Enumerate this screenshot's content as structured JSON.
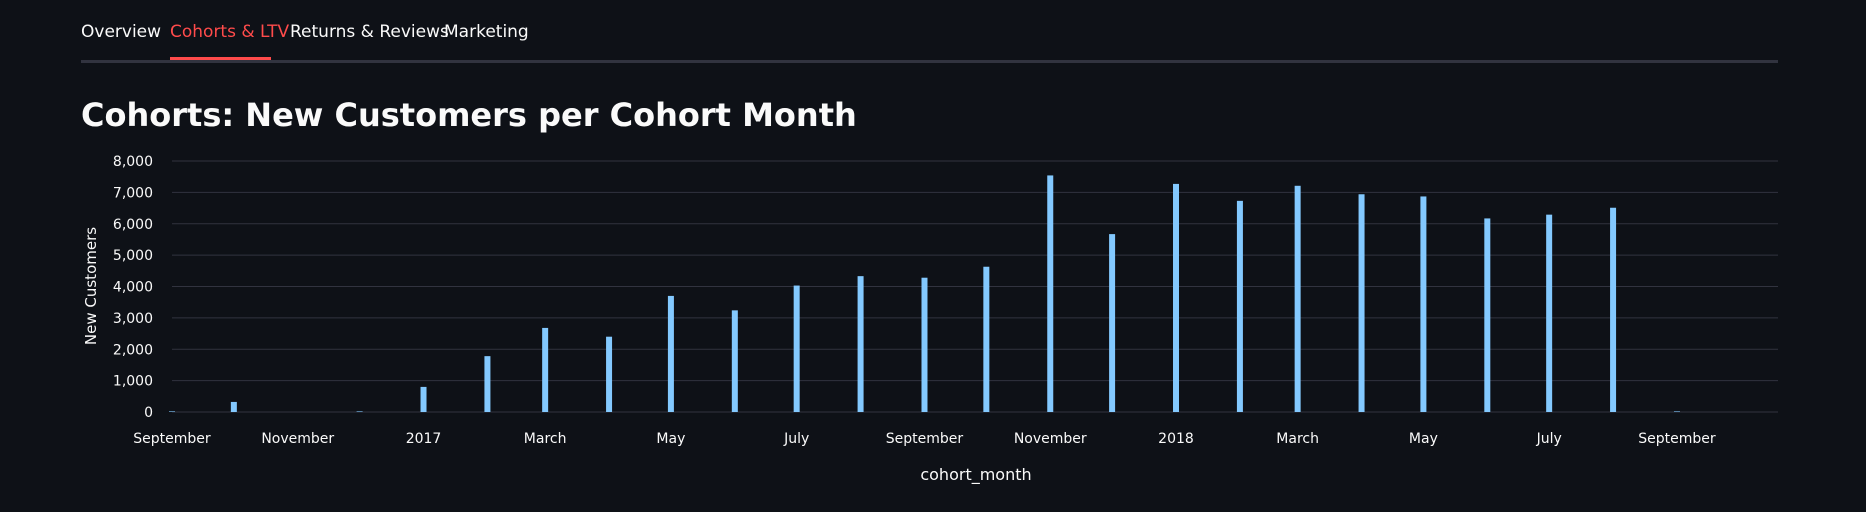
{
  "tabs": [
    {
      "label": "Overview",
      "active": false
    },
    {
      "label": "Cohorts & LTV",
      "active": true
    },
    {
      "label": "Returns & Reviews",
      "active": false
    },
    {
      "label": "Marketing",
      "active": false
    }
  ],
  "section": {
    "title": "Cohorts: New Customers per Cohort Month"
  },
  "colors": {
    "background": "#0e1117",
    "bar": "#83c9ff",
    "active_tab": "#ff4b4b",
    "grid": "#31333f"
  },
  "chart_data": {
    "type": "bar",
    "title": "",
    "xlabel": "cohort_month",
    "ylabel": "New Customers",
    "ylim": [
      0,
      8000
    ],
    "yticks": [
      0,
      1000,
      2000,
      3000,
      4000,
      5000,
      6000,
      7000,
      8000
    ],
    "ytick_labels": [
      "0",
      "1,000",
      "2,000",
      "3,000",
      "4,000",
      "5,000",
      "6,000",
      "7,000",
      "8,000"
    ],
    "xlim": [
      "2016-09-01",
      "2018-10-20"
    ],
    "xticks": [
      {
        "date": "2016-09-01",
        "label": "September"
      },
      {
        "date": "2016-11-01",
        "label": "November"
      },
      {
        "date": "2017-01-01",
        "label": "2017"
      },
      {
        "date": "2017-03-01",
        "label": "March"
      },
      {
        "date": "2017-05-01",
        "label": "May"
      },
      {
        "date": "2017-07-01",
        "label": "July"
      },
      {
        "date": "2017-09-01",
        "label": "September"
      },
      {
        "date": "2017-11-01",
        "label": "November"
      },
      {
        "date": "2018-01-01",
        "label": "2018"
      },
      {
        "date": "2018-03-01",
        "label": "March"
      },
      {
        "date": "2018-05-01",
        "label": "May"
      },
      {
        "date": "2018-07-01",
        "label": "July"
      },
      {
        "date": "2018-09-01",
        "label": "September"
      }
    ],
    "grid": true,
    "legend": "none",
    "points": [
      {
        "x": "2016-09-01",
        "y": 4
      },
      {
        "x": "2016-10-01",
        "y": 321
      },
      {
        "x": "2016-12-01",
        "y": 1
      },
      {
        "x": "2017-01-01",
        "y": 800
      },
      {
        "x": "2017-02-01",
        "y": 1780
      },
      {
        "x": "2017-03-01",
        "y": 2680
      },
      {
        "x": "2017-04-01",
        "y": 2400
      },
      {
        "x": "2017-05-01",
        "y": 3700
      },
      {
        "x": "2017-06-01",
        "y": 3240
      },
      {
        "x": "2017-07-01",
        "y": 4030
      },
      {
        "x": "2017-08-01",
        "y": 4330
      },
      {
        "x": "2017-09-01",
        "y": 4280
      },
      {
        "x": "2017-10-01",
        "y": 4630
      },
      {
        "x": "2017-11-01",
        "y": 7540
      },
      {
        "x": "2017-12-01",
        "y": 5670
      },
      {
        "x": "2018-01-01",
        "y": 7270
      },
      {
        "x": "2018-02-01",
        "y": 6730
      },
      {
        "x": "2018-03-01",
        "y": 7210
      },
      {
        "x": "2018-04-01",
        "y": 6940
      },
      {
        "x": "2018-05-01",
        "y": 6870
      },
      {
        "x": "2018-06-01",
        "y": 6170
      },
      {
        "x": "2018-07-01",
        "y": 6290
      },
      {
        "x": "2018-08-01",
        "y": 6510
      },
      {
        "x": "2018-09-01",
        "y": 16
      }
    ]
  }
}
